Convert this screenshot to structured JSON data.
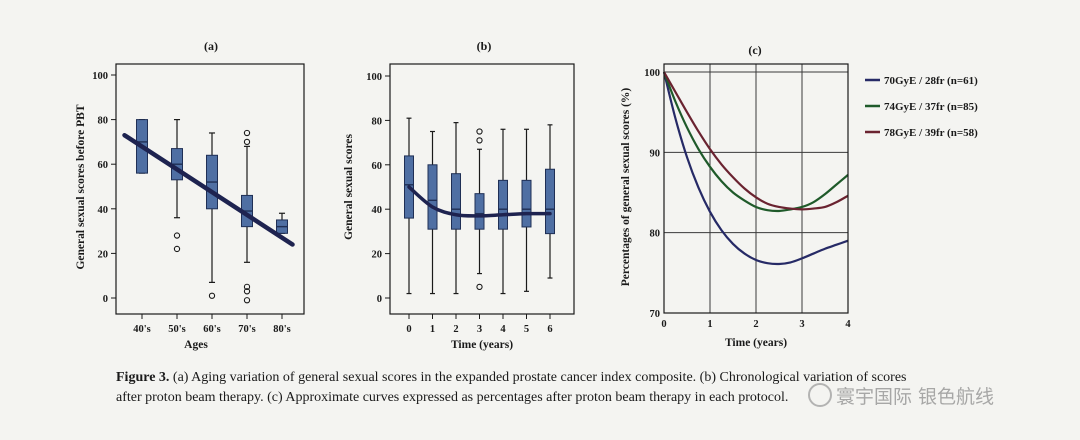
{
  "colors": {
    "box_fill": "#4f6fa3",
    "box_stroke": "#1f2f55",
    "trend": "#1e2350",
    "series": [
      "#262a66",
      "#1f5a2a",
      "#6a2330"
    ],
    "grid": "#3a3a3a"
  },
  "chart_data": [
    {
      "id": "a",
      "type": "boxplot",
      "panel_label": "(a)",
      "xlabel": "Ages",
      "ylabel": "General sexual scores before PBT",
      "ylim": [
        0,
        100
      ],
      "yticks": [
        0,
        20,
        40,
        60,
        80,
        100
      ],
      "categories": [
        "40's",
        "50's",
        "60's",
        "70's",
        "80's"
      ],
      "boxes": [
        {
          "whisker_low": 56,
          "q1": 56,
          "median": 70,
          "q3": 80,
          "whisker_high": 80,
          "outliers": []
        },
        {
          "whisker_low": 36,
          "q1": 53,
          "median": 60,
          "q3": 67,
          "whisker_high": 80,
          "outliers": [
            28,
            22
          ]
        },
        {
          "whisker_low": 7,
          "q1": 40,
          "median": 52,
          "q3": 64,
          "whisker_high": 74,
          "outliers": [
            1
          ]
        },
        {
          "whisker_low": 16,
          "q1": 32,
          "median": 39,
          "q3": 46,
          "whisker_high": 68,
          "outliers": [
            74,
            70,
            5,
            3,
            -1
          ]
        },
        {
          "whisker_low": 29,
          "q1": 29,
          "median": 32,
          "q3": 35,
          "whisker_high": 38,
          "outliers": []
        }
      ],
      "trend": {
        "x": [
          0.5,
          5.3
        ],
        "y": [
          73,
          24
        ]
      }
    },
    {
      "id": "b",
      "type": "boxplot",
      "panel_label": "(b)",
      "xlabel": "Time (years)",
      "ylabel": "General sexual scores",
      "ylim": [
        0,
        100
      ],
      "yticks": [
        0,
        20,
        40,
        60,
        80,
        100
      ],
      "categories": [
        "0",
        "1",
        "2",
        "3",
        "4",
        "5",
        "6"
      ],
      "boxes": [
        {
          "whisker_low": 2,
          "q1": 36,
          "median": 51,
          "q3": 64,
          "whisker_high": 81,
          "outliers": []
        },
        {
          "whisker_low": 2,
          "q1": 31,
          "median": 44,
          "q3": 60,
          "whisker_high": 75,
          "outliers": []
        },
        {
          "whisker_low": 2,
          "q1": 31,
          "median": 40,
          "q3": 56,
          "whisker_high": 79,
          "outliers": []
        },
        {
          "whisker_low": 11,
          "q1": 31,
          "median": 38,
          "q3": 47,
          "whisker_high": 67,
          "outliers": [
            75,
            71,
            5
          ]
        },
        {
          "whisker_low": 2,
          "q1": 31,
          "median": 40,
          "q3": 53,
          "whisker_high": 76,
          "outliers": []
        },
        {
          "whisker_low": 3,
          "q1": 32,
          "median": 40,
          "q3": 53,
          "whisker_high": 76,
          "outliers": []
        },
        {
          "whisker_low": 9,
          "q1": 29,
          "median": 40,
          "q3": 58,
          "whisker_high": 78,
          "outliers": []
        }
      ],
      "trend": {
        "x": [
          0,
          1,
          2,
          3,
          4,
          5,
          6
        ],
        "y": [
          50,
          41,
          37.5,
          37,
          37.5,
          38,
          38
        ]
      }
    },
    {
      "id": "c",
      "type": "line",
      "panel_label": "(c)",
      "xlabel": "Time (years)",
      "ylabel": "Percentages of general sexual scores (%)",
      "xlim": [
        0,
        4
      ],
      "ylim": [
        70,
        101
      ],
      "xticks": [
        0,
        1,
        2,
        3,
        4
      ],
      "yticks": [
        70,
        80,
        90,
        100
      ],
      "grid": true,
      "legend_position": "right",
      "series": [
        {
          "name": "70GyE / 28fr (n=61)",
          "x": [
            0,
            0.25,
            0.5,
            0.75,
            1,
            1.25,
            1.5,
            1.75,
            2,
            2.25,
            2.5,
            2.75,
            3,
            3.25,
            3.5,
            3.75,
            4
          ],
          "y": [
            100,
            94.2,
            89.4,
            85.6,
            82.6,
            80.3,
            78.6,
            77.4,
            76.6,
            76.2,
            76.1,
            76.3,
            76.8,
            77.4,
            78.0,
            78.5,
            79.0
          ]
        },
        {
          "name": "74GyE / 37fr (n=85)",
          "x": [
            0,
            0.25,
            0.5,
            0.75,
            1,
            1.25,
            1.5,
            1.75,
            2,
            2.25,
            2.5,
            2.75,
            3,
            3.25,
            3.5,
            3.75,
            4
          ],
          "y": [
            100,
            96.3,
            93.1,
            90.4,
            88.2,
            86.4,
            85.0,
            84.0,
            83.2,
            82.8,
            82.7,
            82.9,
            83.2,
            83.8,
            84.8,
            86.0,
            87.2
          ]
        },
        {
          "name": "78GyE / 39fr (n=58)",
          "x": [
            0,
            0.25,
            0.5,
            0.75,
            1,
            1.25,
            1.5,
            1.75,
            2,
            2.25,
            2.5,
            2.75,
            3,
            3.25,
            3.5,
            3.75,
            4
          ],
          "y": [
            100,
            97.5,
            95.0,
            92.6,
            90.4,
            88.5,
            86.9,
            85.5,
            84.4,
            83.6,
            83.2,
            83.0,
            82.9,
            83.0,
            83.2,
            83.8,
            84.6
          ]
        }
      ]
    }
  ],
  "caption": {
    "label": "Figure 3.",
    "line1": "(a) Aging variation of general sexual scores in the expanded prostate cancer index composite. (b) Chronological variation of scores",
    "line2": "after proton beam therapy. (c) Approximate curves expressed as percentages after proton beam therapy in each protocol."
  },
  "watermark": {
    "text": "寰宇国际 银色航线",
    "icon": "wechat-icon"
  }
}
